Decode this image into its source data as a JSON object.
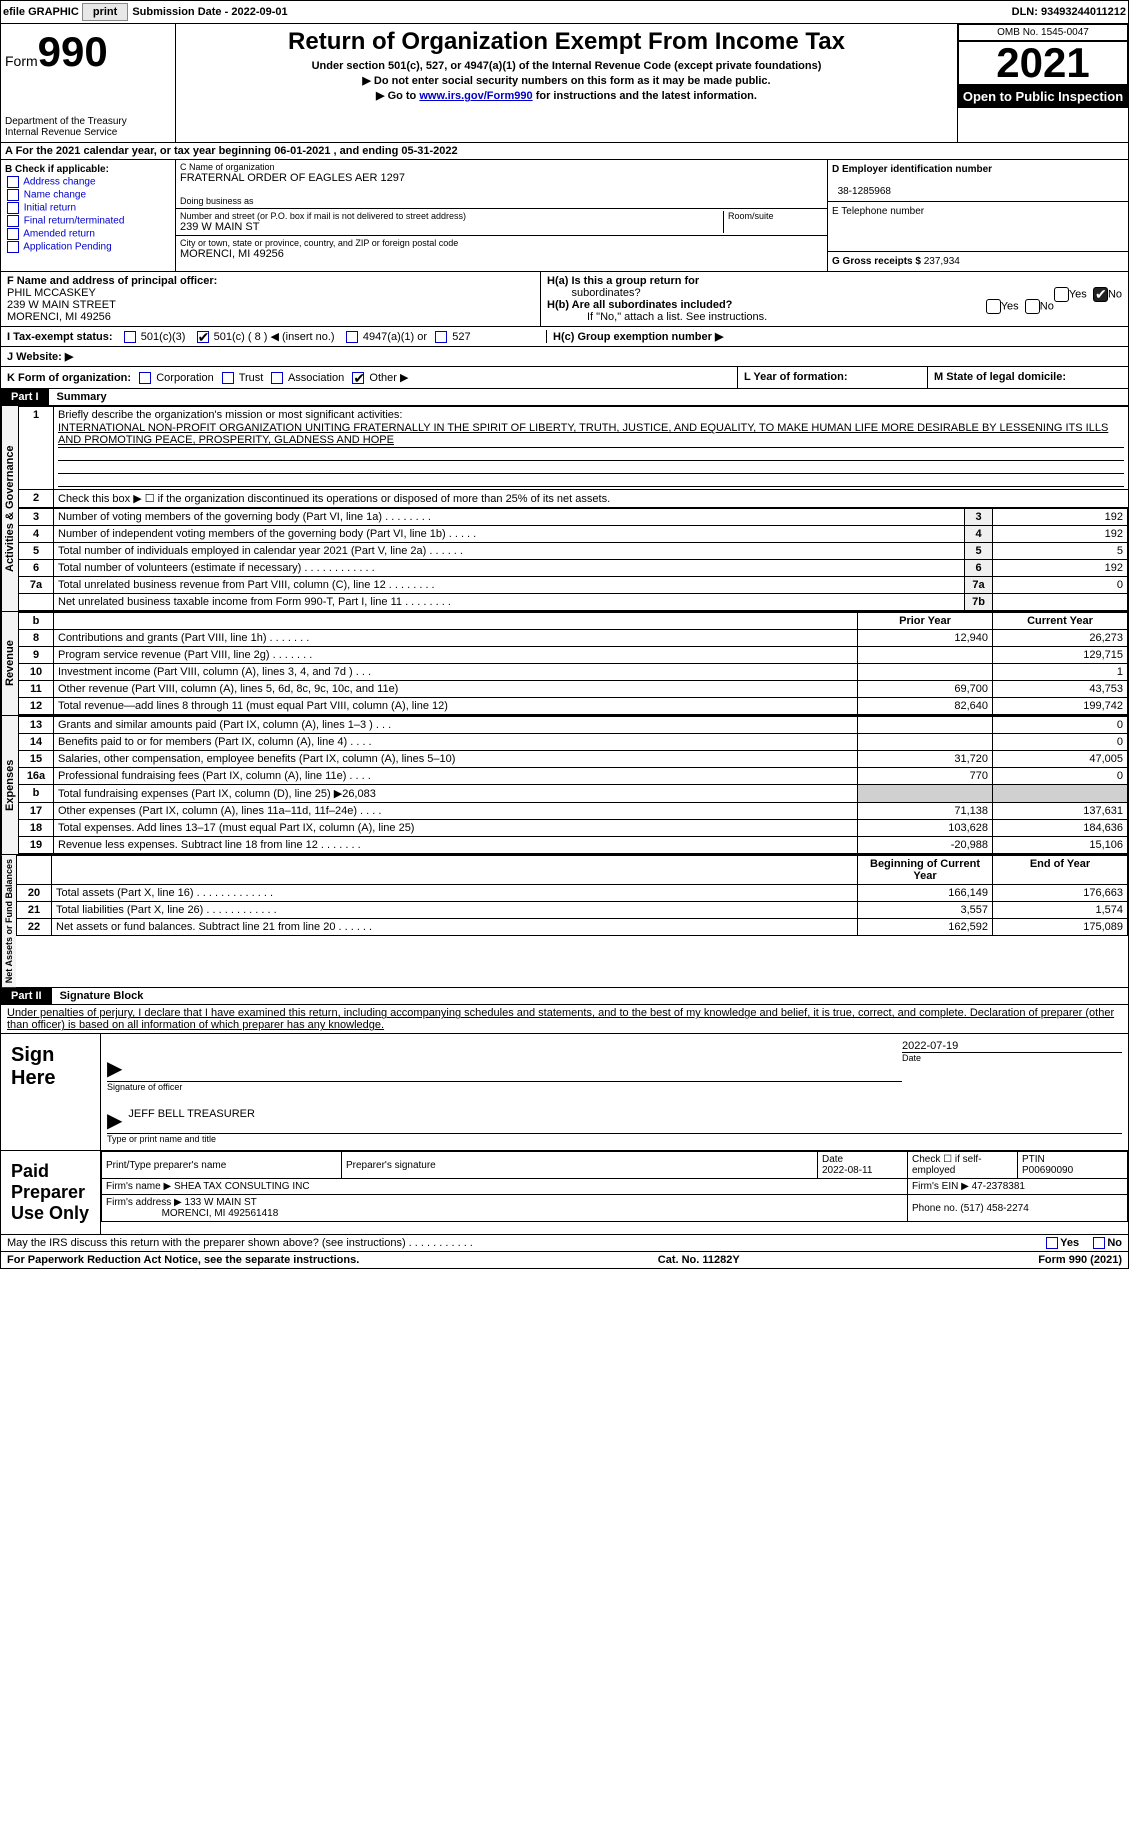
{
  "topbar": {
    "efile_label": "efile GRAPHIC",
    "print_btn": "print",
    "sub_date_label": "Submission Date - ",
    "sub_date": "2022-09-01",
    "dln_label": "DLN: ",
    "dln": "93493244011212"
  },
  "header": {
    "form_word": "Form",
    "form_num": "990",
    "dept": "Department of the Treasury",
    "irs": "Internal Revenue Service",
    "title": "Return of Organization Exempt From Income Tax",
    "under": "Under section 501(c), 527, or 4947(a)(1) of the Internal Revenue Code (except private foundations)",
    "note1": "▶ Do not enter social security numbers on this form as it may be made public.",
    "note2_pre": "▶ Go to ",
    "note2_link": "www.irs.gov/Form990",
    "note2_post": " for instructions and the latest information.",
    "omb": "OMB No. 1545-0047",
    "year": "2021",
    "open_pub": "Open to Public Inspection"
  },
  "a_line": "A For the 2021 calendar year, or tax year beginning 06-01-2021    , and ending 05-31-2022",
  "col_b": {
    "title": "B Check if applicable:",
    "items": [
      "Address change",
      "Name change",
      "Initial return",
      "Final return/terminated",
      "Amended return",
      "Application Pending"
    ]
  },
  "col_c": {
    "name_label": "C Name of organization",
    "org_name": "FRATERNAL ORDER OF EAGLES AER 1297",
    "dba_label": "Doing business as",
    "street_label": "Number and street (or P.O. box if mail is not delivered to street address)",
    "room_label": "Room/suite",
    "street": "239 W MAIN ST",
    "city_label": "City or town, state or province, country, and ZIP or foreign postal code",
    "city": "MORENCI, MI  49256"
  },
  "d_label": "D Employer identification number",
  "ein": "38-1285968",
  "e_label": "E Telephone number",
  "g_label": "G Gross receipts $ ",
  "g_val": "237,934",
  "f": {
    "label": "F  Name and address of principal officer:",
    "name": "PHIL MCCASKEY",
    "street": "239 W MAIN STREET",
    "city": "MORENCI, MI  49256"
  },
  "h": {
    "a1": "H(a)  Is this a group return for",
    "a2": "subordinates?",
    "b1": "H(b)  Are all subordinates included?",
    "b_note": "If \"No,\" attach a list. See instructions.",
    "c": "H(c)  Group exemption number ▶"
  },
  "i_label": "I    Tax-exempt status:",
  "i_opts": {
    "a": "501(c)(3)",
    "b": "501(c) ( 8 ) ◀ (insert no.)",
    "c": "4947(a)(1) or",
    "d": "527"
  },
  "j_label": "J   Website: ▶",
  "k": {
    "label": "K Form of organization:",
    "opts": [
      "Corporation",
      "Trust",
      "Association",
      "Other ▶"
    ]
  },
  "l_label": "L Year of formation:",
  "m_label": "M State of legal domicile:",
  "part1": {
    "num": "Part I",
    "title": "Summary"
  },
  "sections": {
    "ag": "Activities & Governance",
    "rev": "Revenue",
    "exp": "Expenses",
    "nafb": "Net Assets or Fund Balances"
  },
  "line1": {
    "label": "Briefly describe the organization's mission or most significant activities:",
    "text": "INTERNATIONAL NON-PROFIT ORGANIZATION UNITING FRATERNALLY IN THE SPIRIT OF LIBERTY, TRUTH, JUSTICE, AND EQUALITY, TO MAKE HUMAN LIFE MORE DESIRABLE BY LESSENING ITS ILLS AND PROMOTING PEACE, PROSPERITY, GLADNESS AND HOPE"
  },
  "line2": "Check this box ▶ ☐  if the organization discontinued its operations or disposed of more than 25% of its net assets.",
  "lines": [
    {
      "n": "3",
      "t": "Number of voting members of the governing body (Part VI, line 1a)   .   .   .   .   .   .   .   .",
      "box": "3",
      "v": "192"
    },
    {
      "n": "4",
      "t": "Number of independent voting members of the governing body (Part VI, line 1b)   .   .   .   .   .",
      "box": "4",
      "v": "192"
    },
    {
      "n": "5",
      "t": "Total number of individuals employed in calendar year 2021 (Part V, line 2a)    .   .   .   .   .   .",
      "box": "5",
      "v": "5"
    },
    {
      "n": "6",
      "t": "Total number of volunteers (estimate if necessary)     .    .    .    .    .    .    .    .    .    .    .    .",
      "box": "6",
      "v": "192"
    },
    {
      "n": "7a",
      "t": "Total unrelated business revenue from Part VIII, column (C), line 12   .   .   .   .   .   .   .   .",
      "box": "7a",
      "v": "0"
    },
    {
      "n": "",
      "t": "Net unrelated business taxable income from Form 990-T, Part I, line 11  .    .    .    .    .    .    .    .",
      "box": "7b",
      "v": ""
    }
  ],
  "twocol_hdr": {
    "b": "b",
    "prior": "Prior Year",
    "curr": "Current Year"
  },
  "rev_lines": [
    {
      "n": "8",
      "t": "Contributions and grants (Part VIII, line 1h)    .    .    .    .    .    .    .",
      "p": "12,940",
      "c": "26,273"
    },
    {
      "n": "9",
      "t": "Program service revenue (Part VIII, line 2g)    .    .    .    .    .    .    .",
      "p": "",
      "c": "129,715"
    },
    {
      "n": "10",
      "t": "Investment income (Part VIII, column (A), lines 3, 4, and 7d )    .    .    .",
      "p": "",
      "c": "1"
    },
    {
      "n": "11",
      "t": "Other revenue (Part VIII, column (A), lines 5, 6d, 8c, 9c, 10c, and 11e)",
      "p": "69,700",
      "c": "43,753"
    },
    {
      "n": "12",
      "t": "Total revenue—add lines 8 through 11 (must equal Part VIII, column (A), line 12)",
      "p": "82,640",
      "c": "199,742"
    }
  ],
  "exp_lines": [
    {
      "n": "13",
      "t": "Grants and similar amounts paid (Part IX, column (A), lines 1–3 )   .    .    .",
      "p": "",
      "c": "0"
    },
    {
      "n": "14",
      "t": "Benefits paid to or for members (Part IX, column (A), line 4)    .    .    .    .",
      "p": "",
      "c": "0"
    },
    {
      "n": "15",
      "t": "Salaries, other compensation, employee benefits (Part IX, column (A), lines 5–10)",
      "p": "31,720",
      "c": "47,005"
    },
    {
      "n": "16a",
      "t": "Professional fundraising fees (Part IX, column (A), line 11e)    .    .    .    .",
      "p": "770",
      "c": "0"
    },
    {
      "n": "b",
      "t": "Total fundraising expenses (Part IX, column (D), line 25) ▶26,083",
      "p": "GRAY",
      "c": "GRAY"
    },
    {
      "n": "17",
      "t": "Other expenses (Part IX, column (A), lines 11a–11d, 11f–24e)   .    .    .    .",
      "p": "71,138",
      "c": "137,631"
    },
    {
      "n": "18",
      "t": "Total expenses. Add lines 13–17 (must equal Part IX, column (A), line 25)",
      "p": "103,628",
      "c": "184,636"
    },
    {
      "n": "19",
      "t": "Revenue less expenses. Subtract line 18 from line 12   .    .    .    .    .    .    .",
      "p": "-20,988",
      "c": "15,106"
    }
  ],
  "na_hdr": {
    "begin": "Beginning of Current Year",
    "end": "End of Year"
  },
  "na_lines": [
    {
      "n": "20",
      "t": "Total assets (Part X, line 16)   .    .    .    .    .    .    .    .    .    .    .    .    .",
      "p": "166,149",
      "c": "176,663"
    },
    {
      "n": "21",
      "t": "Total liabilities (Part X, line 26)   .    .    .    .    .    .    .    .    .    .    .    .",
      "p": "3,557",
      "c": "1,574"
    },
    {
      "n": "22",
      "t": "Net assets or fund balances. Subtract line 21 from line 20    .    .    .    .    .    .",
      "p": "162,592",
      "c": "175,089"
    }
  ],
  "part2": {
    "num": "Part II",
    "title": "Signature Block"
  },
  "penalty": "Under penalties of perjury, I declare that I have examined this return, including accompanying schedules and statements, and to the best of my knowledge and belief, it is true, correct, and complete. Declaration of preparer (other than officer) is based on all information of which preparer has any knowledge.",
  "sign": {
    "here": "Sign Here",
    "sig_of_officer": "Signature of officer",
    "date": "Date",
    "sig_date": "2022-07-19",
    "name": "JEFF BELL TREASURER",
    "name_label": "Type or print name and title"
  },
  "prep": {
    "title": "Paid Preparer Use Only",
    "print_label": "Print/Type preparer's name",
    "sig_label": "Preparer's signature",
    "date_label": "Date",
    "date": "2022-08-11",
    "check_label": "Check ☐ if self-employed",
    "ptin_label": "PTIN",
    "ptin": "P00690090",
    "firm_name_label": "Firm's name    ▶ ",
    "firm_name": "SHEA TAX CONSULTING INC",
    "firm_ein_label": "Firm's EIN ▶ ",
    "firm_ein": "47-2378381",
    "firm_addr_label": "Firm's address ▶ ",
    "firm_addr1": "133 W MAIN ST",
    "firm_addr2": "MORENCI, MI  492561418",
    "phone_label": "Phone no. ",
    "phone": "(517) 458-2274"
  },
  "discuss": "May the IRS discuss this return with the preparer shown above? (see instructions)    .    .    .    .    .    .    .    .    .    .    .",
  "footer": {
    "pra": "For Paperwork Reduction Act Notice, see the separate instructions.",
    "cat": "Cat. No. 11282Y",
    "form": "Form 990 (2021)"
  },
  "yesno": {
    "yes": "Yes",
    "no": "No"
  }
}
